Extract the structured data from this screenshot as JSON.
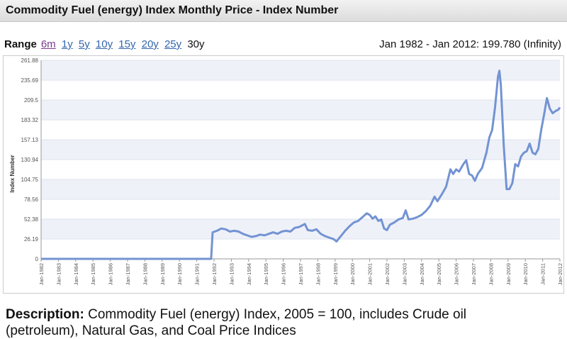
{
  "header": {
    "title": "Commodity Fuel (energy) Index Monthly Price - Index Number"
  },
  "range": {
    "label": "Range",
    "options": [
      "6m",
      "1y",
      "5y",
      "10y",
      "15y",
      "20y",
      "25y",
      "30y"
    ]
  },
  "summary": "Jan 1982 - Jan 2012: 199.780 (Infinity)",
  "description": {
    "label": "Description:",
    "text": "Commodity Fuel (energy) Index, 2005 = 100, includes Crude oil (petroleum), Natural Gas, and Coal Price Indices"
  },
  "chart_data": {
    "type": "line",
    "y_label": "Index Number",
    "grid": true,
    "ylim": [
      0,
      261.88
    ],
    "yticks": [
      0,
      26.19,
      52.38,
      78.56,
      104.75,
      130.94,
      157.13,
      183.32,
      209.5,
      235.69,
      261.88
    ],
    "xticks": [
      "Jan-1982",
      "Jan-1983",
      "Jan-1984",
      "Jan-1985",
      "Jan-1986",
      "Jan-1987",
      "Jan-1988",
      "Jan-1989",
      "Jan-1990",
      "Jan-1991",
      "Jan-1992",
      "Jan-1993",
      "Jan-1994",
      "Jan-1995",
      "Jan-1996",
      "Jan-1997",
      "Jan-1998",
      "Jan-1999",
      "Jan-2000",
      "Jan-2001",
      "Jan-2002",
      "Jan-2003",
      "Jan-2004",
      "Jan-2005",
      "Jan-2006",
      "Jan-2007",
      "Jan-2008",
      "Jan-2009",
      "Jan-2010",
      "Jan-2011",
      "Jan-2012"
    ],
    "x": [
      "Jan-1982",
      "Nov-1991",
      "Dec-1991",
      "Mar-1992",
      "Jun-1992",
      "Sep-1992",
      "Dec-1992",
      "Mar-1993",
      "Jun-1993",
      "Sep-1993",
      "Dec-1993",
      "Mar-1994",
      "Jun-1994",
      "Sep-1994",
      "Dec-1994",
      "Mar-1995",
      "Jun-1995",
      "Sep-1995",
      "Dec-1995",
      "Mar-1996",
      "Jun-1996",
      "Sep-1996",
      "Dec-1996",
      "Feb-1997",
      "Apr-1997",
      "Jun-1997",
      "Sep-1997",
      "Dec-1997",
      "Mar-1998",
      "Jun-1998",
      "Sep-1998",
      "Dec-1998",
      "Feb-1999",
      "May-1999",
      "Aug-1999",
      "Nov-1999",
      "Feb-2000",
      "May-2000",
      "Aug-2000",
      "Nov-2000",
      "Jan-2001",
      "Mar-2001",
      "May-2001",
      "Jul-2001",
      "Sep-2001",
      "Nov-2001",
      "Jan-2002",
      "Mar-2002",
      "Jun-2002",
      "Sep-2002",
      "Dec-2002",
      "Feb-2003",
      "Apr-2003",
      "Jul-2003",
      "Oct-2003",
      "Jan-2004",
      "Apr-2004",
      "Jul-2004",
      "Oct-2004",
      "Dec-2004",
      "Mar-2005",
      "Jun-2005",
      "Aug-2005",
      "Sep-2005",
      "Nov-2005",
      "Jan-2006",
      "Mar-2006",
      "Jun-2006",
      "Aug-2006",
      "Oct-2006",
      "Dec-2006",
      "Feb-2007",
      "Apr-2007",
      "Jul-2007",
      "Oct-2007",
      "Dec-2007",
      "Feb-2008",
      "Apr-2008",
      "Jun-2008",
      "Jul-2008",
      "Aug-2008",
      "Oct-2008",
      "Dec-2008",
      "Feb-2009",
      "Apr-2009",
      "Jun-2009",
      "Aug-2009",
      "Oct-2009",
      "Dec-2009",
      "Feb-2010",
      "Apr-2010",
      "Jun-2010",
      "Aug-2010",
      "Oct-2010",
      "Dec-2010",
      "Feb-2011",
      "Apr-2011",
      "Jun-2011",
      "Aug-2011",
      "Oct-2011",
      "Dec-2011",
      "Jan-2012"
    ],
    "series": [
      {
        "color": "#7393d3",
        "values": [
          0,
          0,
          35,
          37,
          40,
          39,
          36,
          37,
          36,
          33,
          31,
          29,
          30,
          32,
          31,
          33,
          35,
          33,
          36,
          37,
          36,
          41,
          42,
          44,
          46,
          38,
          37,
          39,
          33,
          30,
          28,
          26,
          23,
          30,
          37,
          43,
          48,
          50,
          55,
          60,
          58,
          53,
          56,
          50,
          52,
          40,
          38,
          45,
          48,
          52,
          54,
          64,
          52,
          53,
          55,
          58,
          63,
          70,
          82,
          76,
          85,
          95,
          110,
          118,
          112,
          118,
          115,
          125,
          130,
          112,
          110,
          103,
          112,
          120,
          140,
          160,
          170,
          200,
          240,
          248,
          230,
          150,
          92,
          92,
          100,
          125,
          122,
          135,
          140,
          142,
          152,
          140,
          138,
          145,
          170,
          190,
          212,
          198,
          192,
          195,
          197,
          199.78
        ]
      }
    ]
  }
}
